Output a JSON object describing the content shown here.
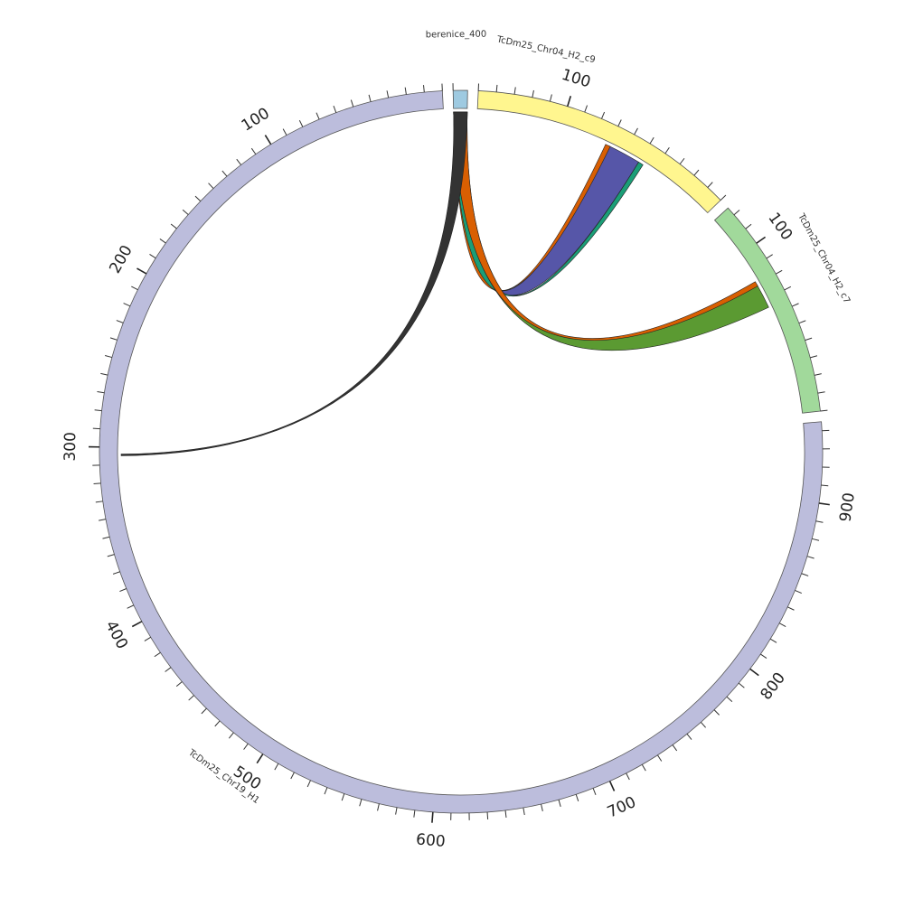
{
  "diagram": {
    "type": "circos-chord",
    "segments": [
      {
        "id": "berenice",
        "label": "berenice_400",
        "length": 8,
        "color": "#9ecae1",
        "ticks": []
      },
      {
        "id": "c9",
        "label": "TcDm25_Chr04_H2_c9",
        "length": 150,
        "color": "#fff68f",
        "ticks": [
          100
        ]
      },
      {
        "id": "c7",
        "label": "TcDm25_Chr04_H2_c7",
        "length": 125,
        "color": "#a1d99b",
        "ticks": [
          100
        ]
      },
      {
        "id": "chr19",
        "label": "TcDm25_Chr19_H1",
        "length": 945,
        "color": "#bcbddc",
        "ticks": [
          100,
          200,
          300,
          400,
          500,
          600,
          700,
          800,
          900
        ]
      }
    ],
    "links": [
      {
        "from": "berenice",
        "from_start": 0,
        "from_end": 8,
        "to": "c9",
        "to_start": 50,
        "to_end": 70,
        "color": "#5656a8"
      },
      {
        "from": "berenice",
        "from_start": 0,
        "from_end": 8,
        "to": "c9",
        "to_start": 69,
        "to_end": 72,
        "color": "#d95f02"
      },
      {
        "from": "berenice",
        "from_start": 0,
        "from_end": 8,
        "to": "c9",
        "to_start": 47,
        "to_end": 50,
        "color": "#1b9e77"
      },
      {
        "from": "berenice",
        "from_start": 0,
        "from_end": 8,
        "to": "c7",
        "to_start": 65,
        "to_end": 80,
        "color": "#5b9a32"
      },
      {
        "from": "berenice",
        "from_start": 0,
        "from_end": 8,
        "to": "c7",
        "to_start": 79,
        "to_end": 82,
        "color": "#d95f02"
      },
      {
        "from": "berenice",
        "from_start": 0,
        "from_end": 8,
        "to": "chr19",
        "to_start": 304,
        "to_end": 305,
        "color": "#333333"
      }
    ]
  }
}
